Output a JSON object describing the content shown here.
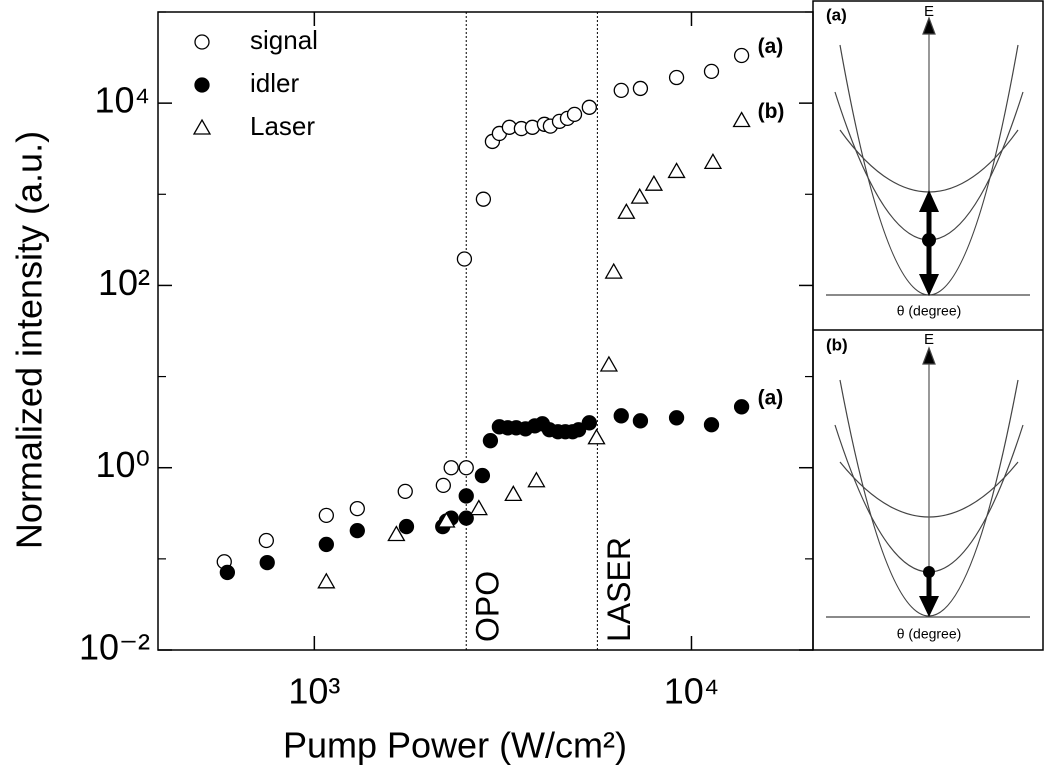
{
  "chart_data": {
    "type": "scatter",
    "xlabel": "Pump Power (W/cm²)",
    "ylabel": "Normalized intensity (a.u.)",
    "xscale": "log",
    "yscale": "log",
    "xlim": [
      385,
      21000
    ],
    "ylim": [
      0.01,
      100000
    ],
    "xticks": [
      {
        "value": 1000,
        "label": "10³"
      },
      {
        "value": 10000,
        "label": "10⁴"
      }
    ],
    "yticks": [
      {
        "value": 0.01,
        "label": "10⁻²"
      },
      {
        "value": 1,
        "label": "10⁰"
      },
      {
        "value": 100,
        "label": "10²"
      },
      {
        "value": 10000,
        "label": "10⁴"
      }
    ],
    "yminorticks": [
      0.1,
      10,
      1000,
      100000
    ],
    "legend": "top-left",
    "series": [
      {
        "name": "signal",
        "color": "#000000",
        "marker": "open-circle",
        "end_label": "(a)",
        "x": [
          577,
          746,
          1076,
          1300,
          1742,
          2198,
          2306,
          2528,
          2500,
          2807,
          2966,
          3095,
          3290,
          3540,
          3787,
          4074,
          4226,
          4467,
          4690,
          4896,
          5360,
          6513,
          7322,
          9130,
          11300,
          13580
        ],
        "values": [
          0.093,
          0.159,
          0.3,
          0.356,
          0.55,
          0.64,
          1.0,
          1.0,
          195,
          884,
          3800,
          4650,
          5430,
          5260,
          5430,
          5860,
          5600,
          6310,
          6810,
          7530,
          9000,
          13800,
          14500,
          19100,
          22300,
          33300
        ]
      },
      {
        "name": "idler",
        "color": "#000000",
        "marker": "filled-circle",
        "end_label": "(a)",
        "x": [
          588,
          750,
          1076,
          1300,
          1755,
          2190,
          2240,
          2306,
          2528,
          2528,
          2790,
          2930,
          3095,
          3258,
          3430,
          3630,
          3843,
          4024,
          4200,
          4426,
          4630,
          4840,
          5020,
          5360,
          6513,
          7322,
          9130,
          11300,
          13580
        ],
        "values": [
          0.071,
          0.091,
          0.144,
          0.204,
          0.226,
          0.226,
          0.26,
          0.28,
          0.28,
          0.49,
          0.82,
          1.98,
          2.81,
          2.74,
          2.74,
          2.67,
          2.88,
          3.03,
          2.61,
          2.48,
          2.48,
          2.48,
          2.61,
          3.11,
          3.71,
          3.27,
          3.53,
          2.96,
          4.66
        ]
      },
      {
        "name": "Laser",
        "color": "#000000",
        "marker": "open-triangle",
        "end_label": "(b)",
        "x": [
          1076,
          1650,
          2240,
          2730,
          3370,
          3880,
          5600,
          6040,
          6220,
          6720,
          7290,
          7950,
          9130,
          11400,
          13580
        ],
        "values": [
          0.056,
          0.185,
          0.26,
          0.356,
          0.51,
          0.72,
          2.13,
          13.4,
          140,
          635,
          930,
          1290,
          1780,
          2240,
          6450
        ]
      }
    ],
    "vlines": [
      {
        "x": 2528,
        "label": "OPO"
      },
      {
        "x": 5630,
        "label": "LASER"
      }
    ],
    "insets": [
      {
        "label": "(a)",
        "energy_label": "E",
        "axis_label": "θ (degree)"
      },
      {
        "label": "(b)",
        "energy_label": "E",
        "axis_label": "θ (degree)"
      }
    ]
  }
}
